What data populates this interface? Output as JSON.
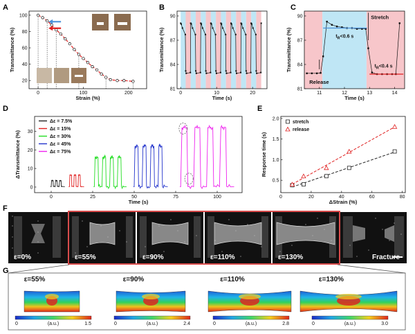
{
  "panels": {
    "A": "A",
    "B": "B",
    "C": "C",
    "D": "D",
    "E": "E",
    "F": "F",
    "G": "G"
  },
  "chart_data": [
    {
      "id": "A",
      "type": "line",
      "xlabel": "Strain (%)",
      "ylabel": "Transmittance (%)",
      "xlim": [
        -20,
        240
      ],
      "ylim": [
        10,
        105
      ],
      "xticks": [
        "0",
        "100",
        "200"
      ],
      "yticks": [
        "20",
        "40",
        "60",
        "80",
        "100"
      ],
      "series": [
        {
          "x": [
            0,
            10,
            20,
            30,
            40,
            50,
            60,
            70,
            80,
            90,
            100,
            110,
            120,
            130,
            140,
            150,
            160,
            175,
            190,
            210
          ],
          "y": [
            100,
            97,
            93,
            88,
            82,
            77,
            71,
            65,
            58,
            52,
            47,
            42,
            37,
            33,
            28,
            24,
            21,
            20,
            20,
            19
          ]
        }
      ],
      "dashed_markers_x": [
        0,
        20,
        40,
        90,
        150,
        210
      ],
      "highlight_points": [
        {
          "x": 20,
          "y": 92,
          "color": "#4a90d9"
        },
        {
          "x": 20,
          "y": 84,
          "color": "#e02020"
        }
      ]
    },
    {
      "id": "B",
      "type": "line",
      "xlabel": "Time (s)",
      "ylabel": "Transmittance (%)",
      "xlim": [
        -1,
        24
      ],
      "ylim": [
        81,
        90.6
      ],
      "xticks": [
        "0",
        "10",
        "20"
      ],
      "yticks": [
        "81",
        "84",
        "87",
        "90"
      ],
      "cycles": 8,
      "high": 89.1,
      "low": 82.9
    },
    {
      "id": "C",
      "type": "line",
      "xlabel": "Time (s)",
      "ylabel": "Transmittance (%)",
      "xlim": [
        10.4,
        14.4
      ],
      "ylim": [
        81,
        90.6
      ],
      "xticks": [
        "11",
        "12",
        "13",
        "14"
      ],
      "yticks": [
        "81",
        "84",
        "87",
        "90"
      ],
      "annotations": [
        "Stretch",
        "Release",
        "t<sub>R</sub><0.6 s",
        "t<sub>R</sub><0.4 s"
      ]
    },
    {
      "id": "D",
      "type": "line",
      "xlabel": "Time (s)",
      "ylabel": "ΔTransmittance (%)",
      "xlim": [
        -10,
        115
      ],
      "ylim": [
        -3,
        38
      ],
      "xticks": [
        "0",
        "25",
        "50",
        "75",
        "100"
      ],
      "yticks": [
        "0",
        "10",
        "20",
        "30"
      ],
      "series": [
        {
          "name": "Δε = 7.5%",
          "color": "#222222",
          "amp": 3.5
        },
        {
          "name": "Δε = 15%",
          "color": "#e02020",
          "amp": 6.5
        },
        {
          "name": "Δε = 30%",
          "color": "#22dd22",
          "amp": 16
        },
        {
          "name": "Δε = 45%",
          "color": "#2233cc",
          "amp": 22
        },
        {
          "name": "Δε = 75%",
          "color": "#ee22ee",
          "amp": 32
        }
      ]
    },
    {
      "id": "E",
      "type": "scatter",
      "xlabel": "ΔStrain (%)",
      "ylabel": "Response time (s)",
      "xlim": [
        0,
        82
      ],
      "ylim": [
        0.2,
        2.05
      ],
      "xticks": [
        "0",
        "20",
        "40",
        "60",
        "80"
      ],
      "yticks": [
        "0.5",
        "1.0",
        "1.5",
        "2.0"
      ],
      "series": [
        {
          "name": "stretch",
          "color": "#222222",
          "x": [
            7.5,
            15,
            30,
            45,
            75
          ],
          "y": [
            0.38,
            0.4,
            0.6,
            0.8,
            1.2
          ]
        },
        {
          "name": "release",
          "color": "#e02020",
          "x": [
            7.5,
            15,
            30,
            45,
            75
          ],
          "y": [
            0.4,
            0.6,
            0.8,
            1.2,
            1.8
          ]
        }
      ]
    }
  ],
  "photos": {
    "items": [
      "ε=0%",
      "ε=55%",
      "ε=90%",
      "ε=110%",
      "ε=130%",
      "Fracture"
    ]
  },
  "fem": {
    "items": [
      {
        "title": "ε=55%",
        "min": "0",
        "unit": "(a.u.)",
        "max": "1.5"
      },
      {
        "title": "ε=90%",
        "min": "0",
        "unit": "(a.u.)",
        "max": "2.4"
      },
      {
        "title": "ε=110%",
        "min": "0",
        "unit": "(a.u.)",
        "max": "2.8"
      },
      {
        "title": "ε=130%",
        "min": "0",
        "unit": "(a.u.)",
        "max": "3.0"
      }
    ]
  }
}
